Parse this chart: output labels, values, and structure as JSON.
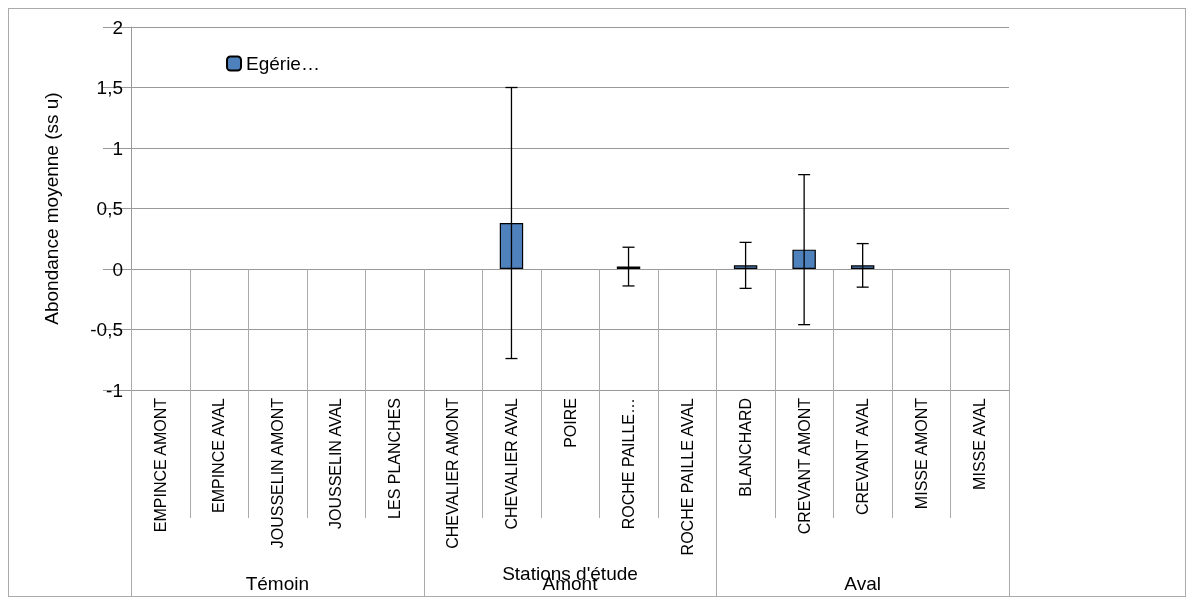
{
  "chart_data": {
    "type": "bar",
    "xlabel": "Stations d'étude",
    "ylabel": "Abondance moyenne (ss u)",
    "categories": [
      "EMPINCE AMONT",
      "EMPINCE AVAL",
      "JOUSSELIN AMONT",
      "JOUSSELIN AVAL",
      "LES PLANCHES",
      "CHEVALIER AMONT",
      "CHEVALIER AVAL",
      "POIRE",
      "ROCHE PAILLE…",
      "ROCHE PAILLE AVAL",
      "BLANCHARD",
      "CREVANT AMONT",
      "CREVANT AVAL",
      "MISSE AMONT",
      "MISSE AVAL"
    ],
    "series": [
      {
        "name": "Egérie…",
        "color": "#4f81bd",
        "values": [
          0,
          0,
          0,
          0,
          0,
          0,
          0.38,
          0,
          0.02,
          0,
          0.03,
          0.16,
          0.03,
          0,
          0
        ],
        "errors": [
          null,
          null,
          null,
          null,
          null,
          null,
          1.12,
          null,
          0.16,
          null,
          0.19,
          0.62,
          0.18,
          null,
          null
        ]
      }
    ],
    "annotations": [
      "Témoin",
      "Amont",
      "Aval"
    ],
    "ylim": [
      -1,
      2
    ],
    "yticks": [
      -1,
      {
        "value": -0.5,
        "label": "-0,5"
      },
      0,
      {
        "value": 0.5,
        "label": "0,5"
      },
      1,
      {
        "value": 1.5,
        "label": "1,5"
      },
      2
    ],
    "grid": "y",
    "legend": "top left"
  }
}
